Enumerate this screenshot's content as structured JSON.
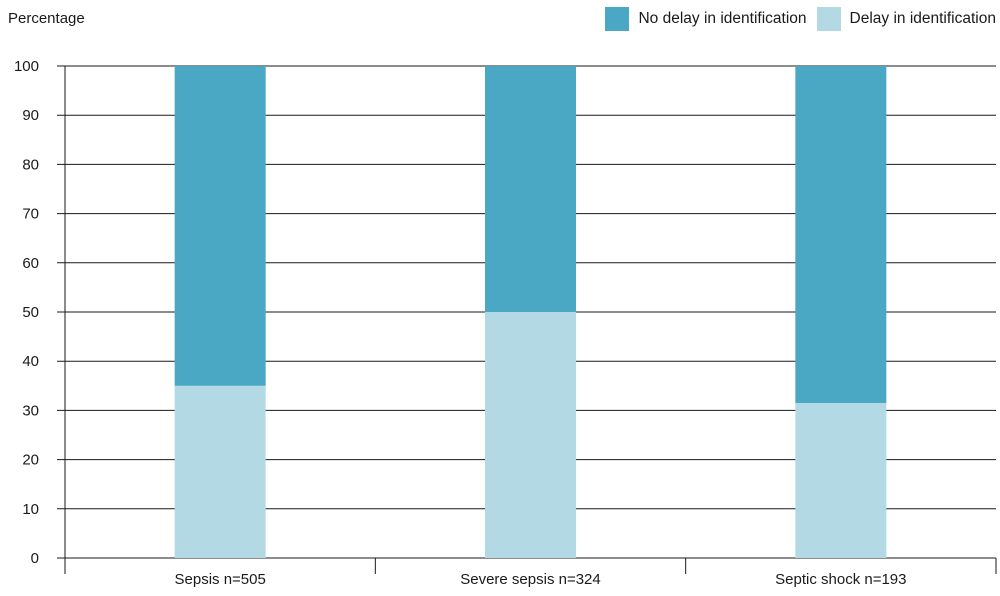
{
  "chart_data": {
    "type": "bar",
    "stacked": true,
    "ylabel": "Percentage",
    "xlabel": "",
    "ylim": [
      0,
      100
    ],
    "yticks": [
      0,
      10,
      20,
      30,
      40,
      50,
      60,
      70,
      80,
      90,
      100
    ],
    "grid": true,
    "legend_position": "top-right",
    "categories": [
      "Sepsis n=505",
      "Severe sepsis n=324",
      "Septic shock n=193"
    ],
    "series": [
      {
        "name": "Delay in identification",
        "color": "#b3dae4",
        "values": [
          35,
          50,
          31.5
        ]
      },
      {
        "name": "No delay in identification",
        "color": "#4ba8c4",
        "values": [
          65,
          50,
          68.5
        ]
      }
    ],
    "legend_order": [
      1,
      0
    ]
  }
}
